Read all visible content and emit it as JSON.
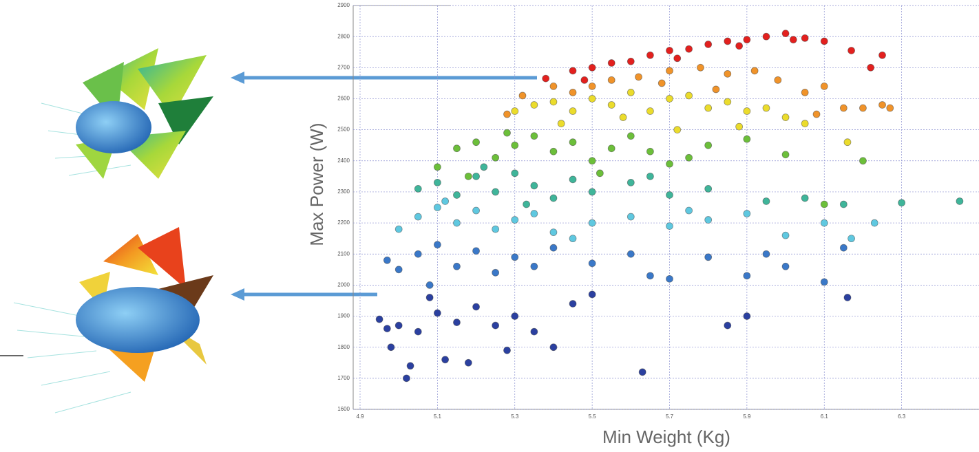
{
  "chart_data": {
    "type": "scatter",
    "x_label": "Min Weight (Kg)",
    "y_label": "Max Power (W)",
    "xlim": [
      4.9,
      6.5
    ],
    "ylim": [
      1600,
      2900
    ],
    "xticks": [
      4.9,
      5.1,
      5.3,
      5.5,
      5.7,
      5.9,
      6.1,
      6.3
    ],
    "yticks": [
      1600,
      1700,
      1800,
      1900,
      2000,
      2100,
      2200,
      2300,
      2400,
      2500,
      2600,
      2700,
      2800,
      2900
    ],
    "grid": true,
    "series": [
      {
        "color": "#e3201e",
        "x": [
          5.38,
          5.45,
          5.5,
          5.55,
          5.6,
          5.65,
          5.7,
          5.75,
          5.8,
          5.85,
          5.9,
          5.95,
          6.0,
          6.05,
          6.1,
          6.17,
          6.22,
          6.25,
          5.48,
          5.72,
          5.88,
          6.02
        ],
        "values": [
          2665,
          2690,
          2700,
          2715,
          2720,
          2740,
          2755,
          2760,
          2775,
          2785,
          2790,
          2800,
          2810,
          2795,
          2785,
          2755,
          2700,
          2740,
          2660,
          2730,
          2770,
          2790
        ]
      },
      {
        "color": "#f0932a",
        "x": [
          5.32,
          5.4,
          5.45,
          5.55,
          5.62,
          5.7,
          5.78,
          5.85,
          5.92,
          5.98,
          6.05,
          6.1,
          6.15,
          6.2,
          6.25,
          6.27,
          5.5,
          5.68,
          5.82,
          6.08,
          5.28
        ],
        "values": [
          2610,
          2640,
          2620,
          2660,
          2670,
          2690,
          2700,
          2680,
          2690,
          2660,
          2620,
          2640,
          2570,
          2570,
          2580,
          2570,
          2640,
          2650,
          2630,
          2550,
          2550
        ]
      },
      {
        "color": "#ebdc2c",
        "x": [
          5.3,
          5.35,
          5.4,
          5.45,
          5.5,
          5.55,
          5.6,
          5.65,
          5.7,
          5.75,
          5.8,
          5.85,
          5.9,
          5.95,
          6.0,
          6.05,
          6.16,
          5.42,
          5.58,
          5.72,
          5.88
        ],
        "values": [
          2560,
          2580,
          2590,
          2560,
          2600,
          2580,
          2620,
          2560,
          2600,
          2610,
          2570,
          2590,
          2560,
          2570,
          2540,
          2520,
          2460,
          2520,
          2540,
          2500,
          2510
        ]
      },
      {
        "color": "#6cbf3a",
        "x": [
          5.1,
          5.15,
          5.2,
          5.25,
          5.3,
          5.35,
          5.4,
          5.45,
          5.5,
          5.55,
          5.6,
          5.65,
          5.7,
          5.8,
          5.9,
          6.0,
          6.1,
          6.2,
          5.18,
          5.28,
          5.52,
          5.75
        ],
        "values": [
          2380,
          2440,
          2460,
          2410,
          2450,
          2480,
          2430,
          2460,
          2400,
          2440,
          2480,
          2430,
          2390,
          2450,
          2470,
          2420,
          2260,
          2400,
          2350,
          2490,
          2360,
          2410
        ]
      },
      {
        "color": "#3fb59a",
        "x": [
          5.05,
          5.1,
          5.15,
          5.2,
          5.25,
          5.3,
          5.35,
          5.4,
          5.45,
          5.5,
          5.6,
          5.7,
          5.8,
          5.95,
          6.05,
          6.15,
          6.3,
          6.45,
          5.22,
          5.33,
          5.65
        ],
        "values": [
          2310,
          2330,
          2290,
          2350,
          2300,
          2360,
          2320,
          2280,
          2340,
          2300,
          2330,
          2290,
          2310,
          2270,
          2280,
          2260,
          2265,
          2270,
          2380,
          2260,
          2350
        ]
      },
      {
        "color": "#5fc8e0",
        "x": [
          5.0,
          5.05,
          5.1,
          5.15,
          5.2,
          5.25,
          5.3,
          5.35,
          5.4,
          5.5,
          5.6,
          5.7,
          5.8,
          5.9,
          6.0,
          6.1,
          6.17,
          6.23,
          5.12,
          5.45,
          5.75
        ],
        "values": [
          2180,
          2220,
          2250,
          2200,
          2240,
          2180,
          2210,
          2230,
          2170,
          2200,
          2220,
          2190,
          2210,
          2230,
          2160,
          2200,
          2150,
          2200,
          2270,
          2150,
          2240
        ]
      },
      {
        "color": "#3a78c8",
        "x": [
          4.97,
          5.0,
          5.05,
          5.1,
          5.15,
          5.2,
          5.25,
          5.3,
          5.4,
          5.5,
          5.6,
          5.7,
          5.8,
          5.9,
          6.0,
          6.1,
          6.15,
          5.08,
          5.35,
          5.65,
          5.95
        ],
        "values": [
          2080,
          2050,
          2100,
          2130,
          2060,
          2110,
          2040,
          2090,
          2120,
          2070,
          2100,
          2020,
          2090,
          2030,
          2060,
          2010,
          2120,
          2000,
          2060,
          2030,
          2100
        ]
      },
      {
        "color": "#2b40a0",
        "x": [
          4.95,
          4.97,
          5.0,
          5.02,
          5.05,
          5.08,
          5.1,
          5.15,
          5.2,
          5.25,
          5.3,
          5.35,
          5.4,
          5.45,
          5.5,
          4.98,
          5.03,
          5.12,
          5.18,
          5.63,
          5.85,
          5.9,
          6.16,
          5.28
        ],
        "values": [
          1890,
          1860,
          1870,
          1700,
          1850,
          1960,
          1910,
          1880,
          1930,
          1870,
          1900,
          1850,
          1800,
          1940,
          1970,
          1800,
          1740,
          1760,
          1750,
          1720,
          1870,
          1900,
          1960,
          1790
        ]
      }
    ]
  }
}
